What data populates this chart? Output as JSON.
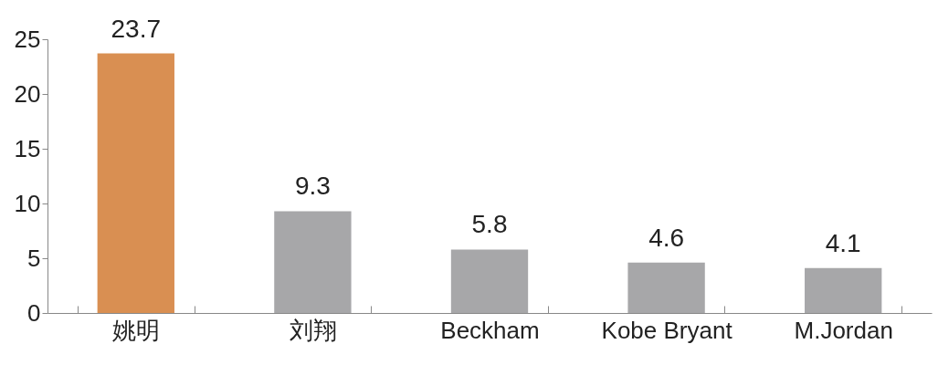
{
  "chart_data": {
    "type": "bar",
    "categories": [
      "姚明",
      "刘翔",
      "Beckham",
      "Kobe Bryant",
      "M.Jordan"
    ],
    "values": [
      23.7,
      9.3,
      5.8,
      4.6,
      4.1
    ],
    "colors": [
      "#d98f52",
      "#a7a7a9",
      "#a7a7a9",
      "#a7a7a9",
      "#a7a7a9"
    ],
    "ylim": [
      0,
      25
    ],
    "yticks": [
      0,
      5,
      10,
      15,
      20,
      25
    ],
    "grid": false,
    "data_labels": true
  }
}
